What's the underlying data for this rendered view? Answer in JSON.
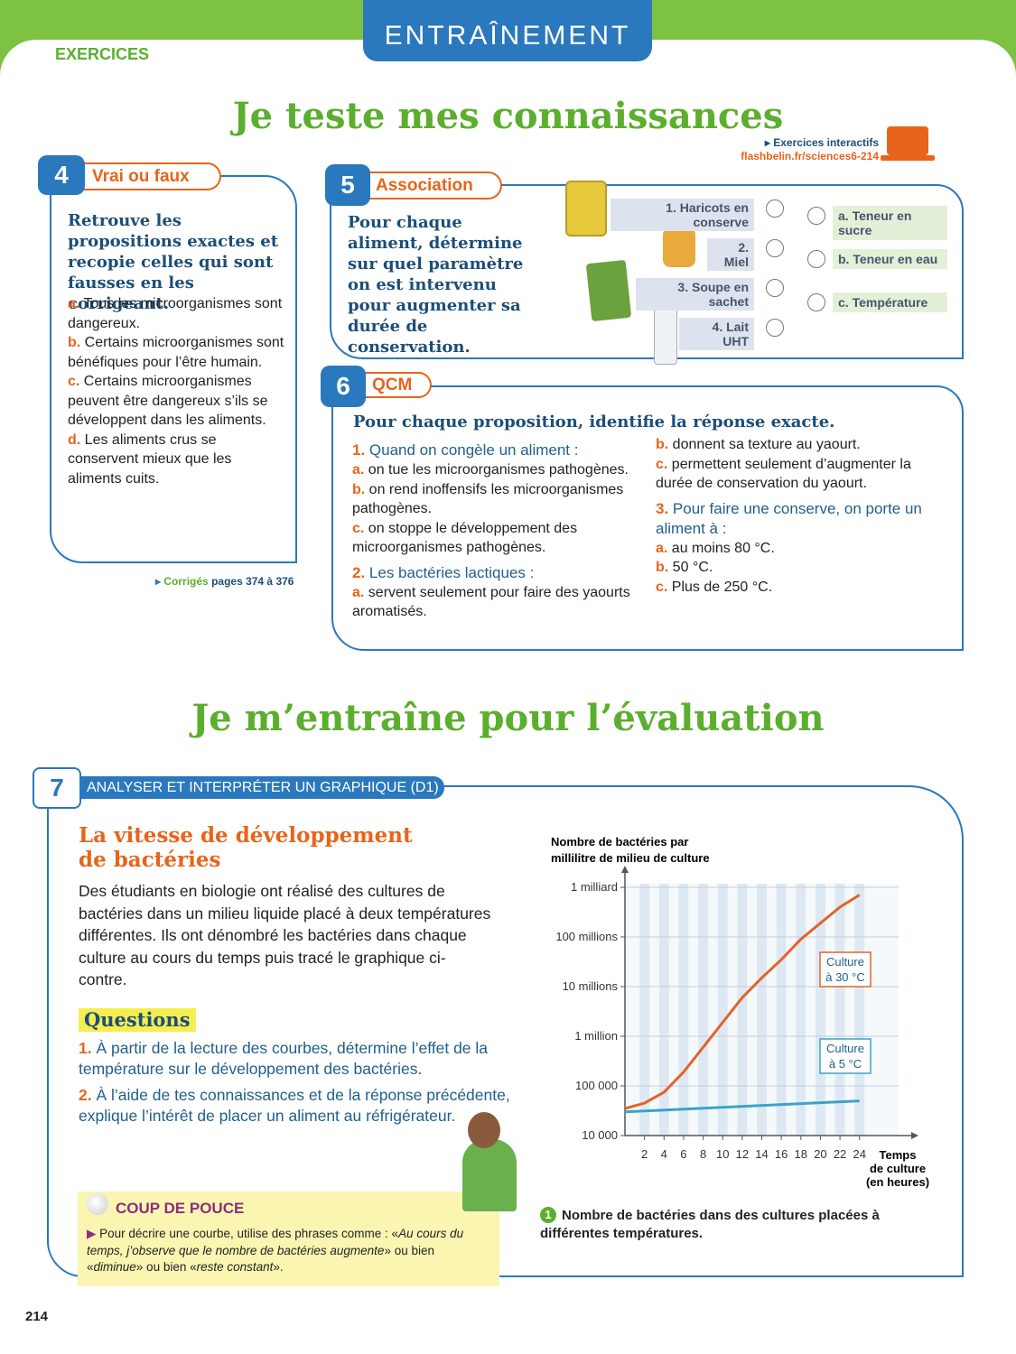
{
  "header": {
    "tab": "EXERCICES",
    "banner": "ENTRAÎNEMENT",
    "title": "Je teste mes connaissances",
    "interactive_label": "Exercices interactifs",
    "interactive_url": "flashbelin.fr/sciences6-214"
  },
  "ex4": {
    "number": "4",
    "title": "Vrai ou faux",
    "instruction": "Retrouve les propositions exactes et recopie celles qui sont fausses en les corrigeant.",
    "items": [
      {
        "letter": "a.",
        "text": "Tous les microorganismes sont dangereux."
      },
      {
        "letter": "b.",
        "text": "Certains microorganismes sont bénéfiques pour l’être humain."
      },
      {
        "letter": "c.",
        "text": "Certains microorganismes peuvent être dangereux s’ils se développent dans les aliments."
      },
      {
        "letter": "d.",
        "text": "Les aliments crus se conservent mieux que les aliments cuits."
      }
    ],
    "corriges": {
      "label": "Corrigés",
      "pages": "pages 374 à 376"
    }
  },
  "ex5": {
    "number": "5",
    "title": "Association",
    "instruction": "Pour chaque aliment, détermine sur quel paramètre on est intervenu pour augmenter sa durée de conservation.",
    "foods": [
      "1. Haricots en conserve",
      "2. Miel",
      "3. Soupe en sachet",
      "4. Lait UHT"
    ],
    "params": [
      "a. Teneur en sucre",
      "b. Teneur en eau",
      "c. Température"
    ]
  },
  "ex6": {
    "number": "6",
    "title": "QCM",
    "instruction": "Pour chaque proposition, identifie la réponse exacte.",
    "questions": [
      {
        "number": "1.",
        "text": "Quand on congèle un aliment :",
        "answers": [
          {
            "letter": "a.",
            "text": "on tue les microorganismes pathogènes."
          },
          {
            "letter": "b.",
            "text": "on rend inoffensifs les microorganismes pathogènes."
          },
          {
            "letter": "c.",
            "text": "on stoppe le développement des microorganismes pathogènes."
          }
        ]
      },
      {
        "number": "2.",
        "text": "Les bactéries lactiques :",
        "answers": [
          {
            "letter": "a.",
            "text": "servent seulement pour faire des yaourts aromatisés."
          },
          {
            "letter": "b.",
            "text": "donnent sa texture au yaourt."
          },
          {
            "letter": "c.",
            "text": "permettent seulement d’augmenter la durée de conservation du yaourt."
          }
        ]
      },
      {
        "number": "3.",
        "text": "Pour faire une conserve, on porte un aliment à :",
        "answers": [
          {
            "letter": "a.",
            "text": "au moins 80 °C."
          },
          {
            "letter": "b.",
            "text": "50 °C."
          },
          {
            "letter": "c.",
            "text": "Plus de 250 °C."
          }
        ]
      }
    ]
  },
  "section2": {
    "title": "Je m’entraîne pour l’évaluation"
  },
  "ex7": {
    "number": "7",
    "skill": "ANALYSER ET INTERPRÉTER UN GRAPHIQUE (D1)",
    "title": "La vitesse de développement de bactéries",
    "intro": "Des étudiants en biologie ont réalisé des cultures de bactéries dans un milieu liquide placé à deux températures différentes. Ils ont dénombré les bactéries dans chaque culture au cours du temps puis tracé le graphique ci-contre.",
    "questions_title": "Questions",
    "questions": [
      {
        "number": "1.",
        "text": "À partir de la lecture des courbes, détermine l’effet de la température sur le développement des bactéries."
      },
      {
        "number": "2.",
        "text": "À l’aide de tes connaissances et de la réponse précédente, explique l’intérêt de placer un aliment au réfrigérateur."
      }
    ],
    "tip": {
      "title": "COUP DE POUCE",
      "parts": [
        "Pour décrire une courbe, utilise des phrases comme : «",
        "Au cours du temps, j’observe que le nombre de bactéries augmente",
        "» ou bien «",
        "diminue",
        "» ou bien «",
        "reste constant",
        "»."
      ]
    },
    "caption": {
      "number": "1",
      "text": "Nombre de bactéries dans des cultures placées à différentes températures."
    }
  },
  "chart_data": {
    "type": "line",
    "y_label": [
      "Nombre de bactéries par",
      "millilitre de milieu de culture"
    ],
    "x_label": [
      "Temps",
      "de culture",
      "(en heures)"
    ],
    "log_y": true,
    "grid": true,
    "xlim": [
      0,
      28
    ],
    "xticks": [
      2,
      4,
      6,
      8,
      10,
      12,
      14,
      16,
      18,
      20,
      22,
      24
    ],
    "ylim": [
      10000,
      1000000000
    ],
    "yticks": [
      {
        "value": 10000,
        "label": "10 000"
      },
      {
        "value": 100000,
        "label": "100 000"
      },
      {
        "value": 1000000,
        "label": "1 million"
      },
      {
        "value": 10000000,
        "label": "10 millions"
      },
      {
        "value": 100000000,
        "label": "100 millions"
      },
      {
        "value": 1000000000,
        "label": "1 milliard"
      }
    ],
    "series": [
      {
        "color": "#e0642a",
        "x": [
          0,
          2,
          4,
          6,
          8,
          10,
          12,
          14,
          16,
          18,
          20,
          22,
          24
        ],
        "values": [
          35000,
          45000,
          75000,
          190000,
          600000,
          1900000,
          6000000,
          15000000,
          35000000,
          90000000,
          190000000,
          400000000,
          700000000
        ]
      },
      {
        "color": "#3aa5c6",
        "x": [
          0,
          24
        ],
        "values": [
          30000,
          50000
        ]
      }
    ],
    "annotations": [
      [
        "Culture",
        "à 30 °C"
      ],
      [
        "Culture",
        "à 5 °C"
      ]
    ]
  }
}
